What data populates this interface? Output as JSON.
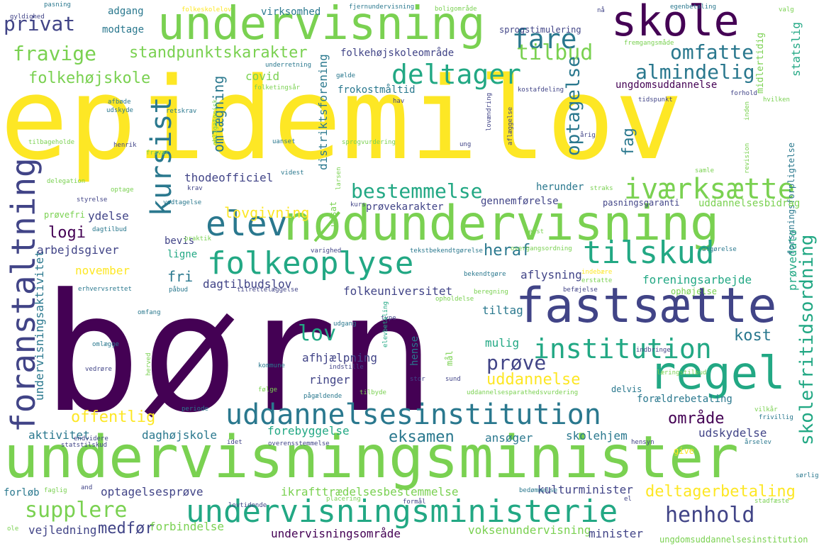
{
  "palette": {
    "yellow": "#fde725",
    "lightgreen": "#7ad151",
    "green": "#22a884",
    "teal": "#2a788e",
    "blue": "#414487",
    "purple": "#440154"
  },
  "words": [
    {
      "text": "epidemilov",
      "color": "#fde725",
      "vertical": false
    },
    {
      "text": "børn",
      "color": "#440154",
      "vertical": false
    },
    {
      "text": "undervisningsminister",
      "color": "#7ad151",
      "vertical": false
    },
    {
      "text": "undervisning",
      "color": "#7ad151",
      "vertical": false
    },
    {
      "text": "nødundervisning",
      "color": "#7ad151",
      "vertical": false
    },
    {
      "text": "fastsætte",
      "color": "#414487",
      "vertical": false
    },
    {
      "text": "skole",
      "color": "#440154",
      "vertical": false
    },
    {
      "text": "regel",
      "color": "#22a884",
      "vertical": false
    },
    {
      "text": "undervisningsministerie",
      "color": "#22a884",
      "vertical": false
    },
    {
      "text": "uddannelsesinstitution",
      "color": "#2a788e",
      "vertical": false
    },
    {
      "text": "folkeoplyse",
      "color": "#22a884",
      "vertical": false
    },
    {
      "text": "elev",
      "color": "#2a788e",
      "vertical": false
    },
    {
      "text": "foranstaltning",
      "color": "#414487",
      "vertical": true
    },
    {
      "text": "kursist",
      "color": "#2a788e",
      "vertical": true
    },
    {
      "text": "tilskud",
      "color": "#22a884",
      "vertical": false
    },
    {
      "text": "iværksætte",
      "color": "#7ad151",
      "vertical": false
    },
    {
      "text": "institution",
      "color": "#22a884",
      "vertical": false
    },
    {
      "text": "deltager",
      "color": "#22a884",
      "vertical": false
    },
    {
      "text": "fare",
      "color": "#2a788e",
      "vertical": false
    },
    {
      "text": "henhold",
      "color": "#414487",
      "vertical": false
    },
    {
      "text": "supplere",
      "color": "#7ad151",
      "vertical": false
    },
    {
      "text": "privat",
      "color": "#414487",
      "vertical": false
    },
    {
      "text": "fravige",
      "color": "#7ad151",
      "vertical": false
    },
    {
      "text": "tilbud",
      "color": "#7ad151",
      "vertical": false
    },
    {
      "text": "omfatte",
      "color": "#2a788e",
      "vertical": false
    },
    {
      "text": "almindelig",
      "color": "#2a788e",
      "vertical": false
    },
    {
      "text": "bestemmelse",
      "color": "#22a884",
      "vertical": false
    },
    {
      "text": "standpunktskarakter",
      "color": "#7ad151",
      "vertical": false
    },
    {
      "text": "folkehøjskole",
      "color": "#7ad151",
      "vertical": false
    },
    {
      "text": "skolefritidsordning",
      "color": "#22a884",
      "vertical": true
    },
    {
      "text": "deltagerbetaling",
      "color": "#fde725",
      "vertical": false
    },
    {
      "text": "prøve",
      "color": "#414487",
      "vertical": false
    },
    {
      "text": "lov",
      "color": "#22a884",
      "vertical": false
    },
    {
      "text": "kost",
      "color": "#2a788e",
      "vertical": false
    },
    {
      "text": "offentlig",
      "color": "#fde725",
      "vertical": false
    },
    {
      "text": "eksamen",
      "color": "#2a788e",
      "vertical": false
    },
    {
      "text": "uddannelse",
      "color": "#fde725",
      "vertical": false
    },
    {
      "text": "område",
      "color": "#440154",
      "vertical": false
    },
    {
      "text": "medfør",
      "color": "#414487",
      "vertical": false
    },
    {
      "text": "logi",
      "color": "#440154",
      "vertical": false
    },
    {
      "text": "heraf",
      "color": "#2a788e",
      "vertical": false
    },
    {
      "text": "fri",
      "color": "#2a788e",
      "vertical": false
    },
    {
      "text": "lovgivning",
      "color": "#fde725",
      "vertical": false
    },
    {
      "text": "optagelse",
      "color": "#2a788e",
      "vertical": true
    },
    {
      "text": "fag",
      "color": "#2a788e",
      "vertical": true
    },
    {
      "text": "omlægning",
      "color": "#2a788e",
      "vertical": true
    },
    {
      "text": "undervisningsaktivitet",
      "color": "#2a788e",
      "vertical": true
    },
    {
      "text": "distriktsforening",
      "color": "#2a788e",
      "vertical": true
    },
    {
      "text": "statslig",
      "color": "#22a884",
      "vertical": true
    },
    {
      "text": "prøvedato",
      "color": "#22a884",
      "vertical": true
    },
    {
      "text": "forsyningsforpligtelse",
      "color": "#2a788e",
      "vertical": true
    },
    {
      "text": "udsat",
      "color": "#7ad151",
      "vertical": true
    },
    {
      "text": "midlertidig",
      "color": "#7ad151",
      "vertical": true
    },
    {
      "text": "mål",
      "color": "#7ad151",
      "vertical": true
    },
    {
      "text": "hense",
      "color": "#2a788e",
      "vertical": true
    },
    {
      "text": "kulturminister",
      "color": "#414487",
      "vertical": false
    },
    {
      "text": "voksenundervisning",
      "color": "#7ad151",
      "vertical": false
    },
    {
      "text": "undervisningsområde",
      "color": "#440154",
      "vertical": false
    },
    {
      "text": "forbindelse",
      "color": "#7ad151",
      "vertical": false
    },
    {
      "text": "minister",
      "color": "#414487",
      "vertical": false
    },
    {
      "text": "ungdomsuddannelsesinstitution",
      "color": "#7ad151",
      "vertical": false
    },
    {
      "text": "vejledning",
      "color": "#414487",
      "vertical": false
    },
    {
      "text": "forløb",
      "color": "#2a788e",
      "vertical": false
    },
    {
      "text": "optagelsesprøve",
      "color": "#414487",
      "vertical": false
    },
    {
      "text": "ikrafttrædelsesbestemmelse",
      "color": "#7ad151",
      "vertical": false
    },
    {
      "text": "aktivitet",
      "color": "#2a788e",
      "vertical": false
    },
    {
      "text": "daghøjskole",
      "color": "#2a788e",
      "vertical": false
    },
    {
      "text": "forebyggelse",
      "color": "#22a884",
      "vertical": false
    },
    {
      "text": "ansøger",
      "color": "#2a788e",
      "vertical": false
    },
    {
      "text": "skolehjem",
      "color": "#2a788e",
      "vertical": false
    },
    {
      "text": "udskydelse",
      "color": "#414487",
      "vertical": false
    },
    {
      "text": "give",
      "color": "#fde725",
      "vertical": false
    },
    {
      "text": "forældrebetaling",
      "color": "#2a788e",
      "vertical": false
    },
    {
      "text": "delvis",
      "color": "#2a788e",
      "vertical": false
    },
    {
      "text": "ringer",
      "color": "#414487",
      "vertical": false
    },
    {
      "text": "afhjælpning",
      "color": "#414487",
      "vertical": false
    },
    {
      "text": "mulig",
      "color": "#22a884",
      "vertical": false
    },
    {
      "text": "tiltag",
      "color": "#2a788e",
      "vertical": false
    },
    {
      "text": "folkeuniversitet",
      "color": "#414487",
      "vertical": false
    },
    {
      "text": "dagtilbudslov",
      "color": "#414487",
      "vertical": false
    },
    {
      "text": "aflysning",
      "color": "#414487",
      "vertical": false
    },
    {
      "text": "foreningsarbejde",
      "color": "#22a884",
      "vertical": false
    },
    {
      "text": "ophøjelse",
      "color": "#7ad151",
      "vertical": false
    },
    {
      "text": "november",
      "color": "#fde725",
      "vertical": false
    },
    {
      "text": "ligne",
      "color": "#22a884",
      "vertical": false
    },
    {
      "text": "bevis",
      "color": "#414487",
      "vertical": false
    },
    {
      "text": "arbejdsgiver",
      "color": "#414487",
      "vertical": false
    },
    {
      "text": "ydelse",
      "color": "#414487",
      "vertical": false
    },
    {
      "text": "prøvefri",
      "color": "#7ad151",
      "vertical": false
    },
    {
      "text": "prøvekarakter",
      "color": "#414487",
      "vertical": false
    },
    {
      "text": "gennemførelse",
      "color": "#414487",
      "vertical": false
    },
    {
      "text": "pasningsgaranti",
      "color": "#414487",
      "vertical": false
    },
    {
      "text": "uddannelsesbidrag",
      "color": "#7ad151",
      "vertical": false
    },
    {
      "text": "herunder",
      "color": "#2a788e",
      "vertical": false
    },
    {
      "text": "thodeofficiel",
      "color": "#414487",
      "vertical": false
    },
    {
      "text": "frokostmåltid",
      "color": "#2a788e",
      "vertical": false
    },
    {
      "text": "ungdomsuddannelse",
      "color": "#440154",
      "vertical": false
    },
    {
      "text": "folkehøjskoleområde",
      "color": "#414487",
      "vertical": false
    },
    {
      "text": "covid",
      "color": "#7ad151",
      "vertical": false
    },
    {
      "text": "sprogstimulering",
      "color": "#414487",
      "vertical": false
    },
    {
      "text": "virksomhed",
      "color": "#2a788e",
      "vertical": false
    },
    {
      "text": "adgang",
      "color": "#2a788e",
      "vertical": false
    },
    {
      "text": "modtage",
      "color": "#2a788e",
      "vertical": false
    },
    {
      "text": "pasning",
      "color": "#2a788e",
      "vertical": false
    },
    {
      "text": "gyldighed",
      "color": "#414487",
      "vertical": false
    },
    {
      "text": "folkeskolelov",
      "color": "#fde725",
      "vertical": false
    },
    {
      "text": "fjernundervisning",
      "color": "#2a788e",
      "vertical": false
    },
    {
      "text": "boligområde",
      "color": "#7ad151",
      "vertical": false
    },
    {
      "text": "egenbetaling",
      "color": "#2a788e",
      "vertical": false
    },
    {
      "text": "fremgangsmåde",
      "color": "#7ad151",
      "vertical": false
    },
    {
      "text": "nå",
      "color": "#414487",
      "vertical": false
    },
    {
      "text": "valg",
      "color": "#7ad151",
      "vertical": false
    },
    {
      "text": "underretning",
      "color": "#2a788e",
      "vertical": false
    },
    {
      "text": "gælde",
      "color": "#2a788e",
      "vertical": false
    },
    {
      "text": "folketingsår",
      "color": "#7ad151",
      "vertical": false
    },
    {
      "text": "kostafdeling",
      "color": "#414487",
      "vertical": false
    },
    {
      "text": "forhold",
      "color": "#414487",
      "vertical": false
    },
    {
      "text": "hav",
      "color": "#414487",
      "vertical": false
    },
    {
      "text": "tidspunkt",
      "color": "#414487",
      "vertical": false
    },
    {
      "text": "hvilken",
      "color": "#7ad151",
      "vertical": false
    },
    {
      "text": "afbøde",
      "color": "#2a788e",
      "vertical": false
    },
    {
      "text": "udskyde",
      "color": "#2a788e",
      "vertical": false
    },
    {
      "text": "retskrav",
      "color": "#2a788e",
      "vertical": false
    },
    {
      "text": "henrik",
      "color": "#414487",
      "vertical": false
    },
    {
      "text": "uanset",
      "color": "#2a788e",
      "vertical": false
    },
    {
      "text": "sprogvurdering",
      "color": "#7ad151",
      "vertical": false
    },
    {
      "text": "ung",
      "color": "#414487",
      "vertical": false
    },
    {
      "text": "årig",
      "color": "#414487",
      "vertical": false
    },
    {
      "text": "tilbageholde",
      "color": "#7ad151",
      "vertical": false
    },
    {
      "text": "fravær",
      "color": "#7ad151",
      "vertical": false
    },
    {
      "text": "videst",
      "color": "#2a788e",
      "vertical": false
    },
    {
      "text": "samle",
      "color": "#7ad151",
      "vertical": false
    },
    {
      "text": "delegation",
      "color": "#7ad151",
      "vertical": false
    },
    {
      "text": "optage",
      "color": "#7ad151",
      "vertical": false
    },
    {
      "text": "krav",
      "color": "#414487",
      "vertical": false
    },
    {
      "text": "straks",
      "color": "#7ad151",
      "vertical": false
    },
    {
      "text": "styrelse",
      "color": "#414487",
      "vertical": false
    },
    {
      "text": "vedtagelse",
      "color": "#2a788e",
      "vertical": false
    },
    {
      "text": "kurs",
      "color": "#414487",
      "vertical": false
    },
    {
      "text": "dagtilbud",
      "color": "#2a788e",
      "vertical": false
    },
    {
      "text": "praktik",
      "color": "#7ad151",
      "vertical": false
    },
    {
      "text": "bedst",
      "color": "#7ad151",
      "vertical": false
    },
    {
      "text": "varighed",
      "color": "#414487",
      "vertical": false
    },
    {
      "text": "tekstbekendtgørelse",
      "color": "#2a788e",
      "vertical": false
    },
    {
      "text": "overgangsordning",
      "color": "#7ad151",
      "vertical": false
    },
    {
      "text": "afgørelse",
      "color": "#2a788e",
      "vertical": false
    },
    {
      "text": "bekendtgøre",
      "color": "#2a788e",
      "vertical": false
    },
    {
      "text": "indebære",
      "color": "#fde725",
      "vertical": false
    },
    {
      "text": "erstatte",
      "color": "#7ad151",
      "vertical": false
    },
    {
      "text": "erhvervsrettet",
      "color": "#2a788e",
      "vertical": false
    },
    {
      "text": "påbud",
      "color": "#2a788e",
      "vertical": false
    },
    {
      "text": "tilrettelæggelse",
      "color": "#414487",
      "vertical": false
    },
    {
      "text": "beregning",
      "color": "#7ad151",
      "vertical": false
    },
    {
      "text": "befæjelse",
      "color": "#414487",
      "vertical": false
    },
    {
      "text": "omfang",
      "color": "#2a788e",
      "vertical": false
    },
    {
      "text": "opholdelse",
      "color": "#7ad151",
      "vertical": false
    },
    {
      "text": "udgang",
      "color": "#2a788e",
      "vertical": false
    },
    {
      "text": "type",
      "color": "#414487",
      "vertical": false
    },
    {
      "text": "omlægge",
      "color": "#2a788e",
      "vertical": false
    },
    {
      "text": "indbringe",
      "color": "#414487",
      "vertical": false
    },
    {
      "text": "vedrøre",
      "color": "#414487",
      "vertical": false
    },
    {
      "text": "kommune",
      "color": "#2a788e",
      "vertical": false
    },
    {
      "text": "indstille",
      "color": "#414487",
      "vertical": false
    },
    {
      "text": "læringstilbud",
      "color": "#7ad151",
      "vertical": false
    },
    {
      "text": "følge",
      "color": "#7ad151",
      "vertical": false
    },
    {
      "text": "pågældende",
      "color": "#2a788e",
      "vertical": false
    },
    {
      "text": "tilbyde",
      "color": "#7ad151",
      "vertical": false
    },
    {
      "text": "stor",
      "color": "#414487",
      "vertical": false
    },
    {
      "text": "sund",
      "color": "#414487",
      "vertical": false
    },
    {
      "text": "uddannelsesparathedsvurdering",
      "color": "#7ad151",
      "vertical": false
    },
    {
      "text": "periode",
      "color": "#2a788e",
      "vertical": false
    },
    {
      "text": "vilkår",
      "color": "#7ad151",
      "vertical": false
    },
    {
      "text": "frivillig",
      "color": "#2a788e",
      "vertical": false
    },
    {
      "text": "statstilskud",
      "color": "#414487",
      "vertical": false
    },
    {
      "text": "endvidere",
      "color": "#414487",
      "vertical": false
    },
    {
      "text": "idet",
      "color": "#414487",
      "vertical": false
    },
    {
      "text": "overensstemmelse",
      "color": "#414487",
      "vertical": false
    },
    {
      "text": "hensyn",
      "color": "#414487",
      "vertical": false
    },
    {
      "text": "årselev",
      "color": "#2a788e",
      "vertical": false
    },
    {
      "text": "sørlig",
      "color": "#2a788e",
      "vertical": false
    },
    {
      "text": "faglig",
      "color": "#7ad151",
      "vertical": false
    },
    {
      "text": "and",
      "color": "#414487",
      "vertical": false
    },
    {
      "text": "bedømmelse",
      "color": "#2a788e",
      "vertical": false
    },
    {
      "text": "el",
      "color": "#414487",
      "vertical": false
    },
    {
      "text": "stadfæste",
      "color": "#7ad151",
      "vertical": false
    },
    {
      "text": "lovtidende",
      "color": "#414487",
      "vertical": false
    },
    {
      "text": "placering",
      "color": "#7ad151",
      "vertical": false
    },
    {
      "text": "formål",
      "color": "#414487",
      "vertical": false
    },
    {
      "text": "ole",
      "color": "#7ad151",
      "vertical": false
    },
    {
      "text": "obligatorisk",
      "color": "#7ad151",
      "vertical": true
    },
    {
      "text": "lovændring",
      "color": "#414487",
      "vertical": true
    },
    {
      "text": "aflæggelse",
      "color": "#414487",
      "vertical": true
    },
    {
      "text": "inden",
      "color": "#7ad151",
      "vertical": true
    },
    {
      "text": "revision",
      "color": "#7ad151",
      "vertical": true
    },
    {
      "text": "elevbetaling",
      "color": "#22a884",
      "vertical": true
    },
    {
      "text": "herved",
      "color": "#7ad151",
      "vertical": true
    },
    {
      "text": "larsen",
      "color": "#7ad151",
      "vertical": true
    }
  ]
}
